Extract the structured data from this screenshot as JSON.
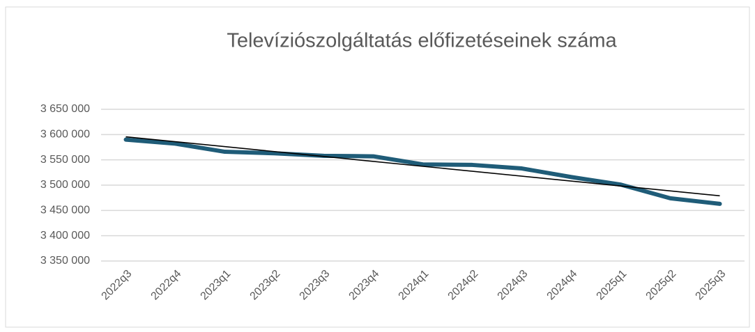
{
  "chart_data": {
    "type": "line",
    "title": "Televíziószolgáltatás előfizetéseinek száma",
    "categories": [
      "2022q3",
      "2022q4",
      "2023q1",
      "2023q2",
      "2023q3",
      "2023q4",
      "2024q1",
      "2024q2",
      "2024q3",
      "2024q4",
      "2025q1",
      "2025q2",
      "2025q3"
    ],
    "series": [
      {
        "color": "#1f5c78",
        "values": [
          3590000,
          3582000,
          3566000,
          3563000,
          3558000,
          3557000,
          3541000,
          3540000,
          3533000,
          3516000,
          3501000,
          3474000,
          3463000
        ]
      }
    ],
    "trendline": true,
    "trendline_color": "#000000",
    "ylim": [
      3350000,
      3650000
    ],
    "yticks": [
      {
        "value": 3350000,
        "label": "3 350 000"
      },
      {
        "value": 3400000,
        "label": "3 400 000"
      },
      {
        "value": 3450000,
        "label": "3 450 000"
      },
      {
        "value": 3500000,
        "label": "3 500 000"
      },
      {
        "value": 3550000,
        "label": "3 550 000"
      },
      {
        "value": 3600000,
        "label": "3 600 000"
      },
      {
        "value": 3650000,
        "label": "3 650 000"
      }
    ],
    "grid": true
  }
}
